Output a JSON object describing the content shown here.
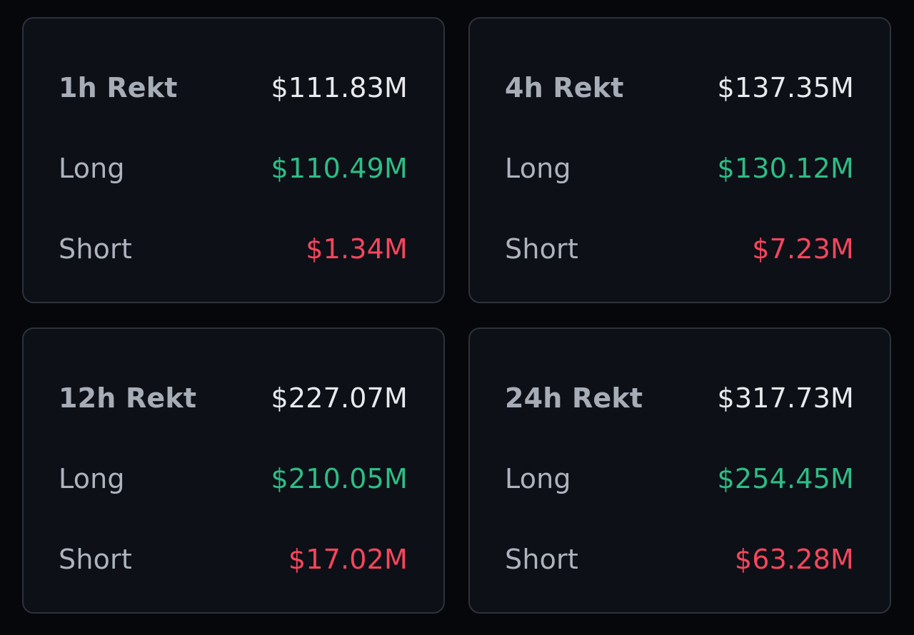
{
  "colors": {
    "background": "#05070b",
    "card": "#0d1017",
    "card_border": "#2d323b",
    "long": "#2ebd85",
    "short": "#f6465d",
    "total": "#e8eaed",
    "label": "#aeb4bd"
  },
  "cards": [
    {
      "title": "1h Rekt",
      "total": "$111.83M",
      "long_label": "Long",
      "long": "$110.49M",
      "short_label": "Short",
      "short": "$1.34M"
    },
    {
      "title": "4h Rekt",
      "total": "$137.35M",
      "long_label": "Long",
      "long": "$130.12M",
      "short_label": "Short",
      "short": "$7.23M"
    },
    {
      "title": "12h Rekt",
      "total": "$227.07M",
      "long_label": "Long",
      "long": "$210.05M",
      "short_label": "Short",
      "short": "$17.02M"
    },
    {
      "title": "24h Rekt",
      "total": "$317.73M",
      "long_label": "Long",
      "long": "$254.45M",
      "short_label": "Short",
      "short": "$63.28M"
    }
  ]
}
